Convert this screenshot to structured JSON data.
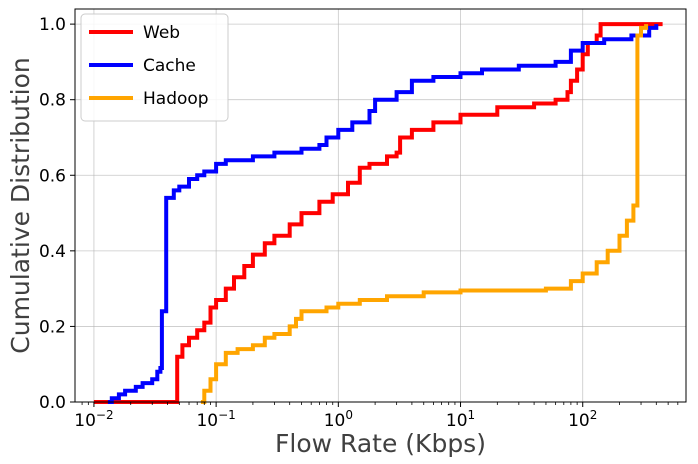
{
  "chart_data": {
    "type": "line",
    "step": true,
    "title": "",
    "xlabel": "Flow Rate (Kbps)",
    "ylabel": "Cumulative Distribution",
    "x_scale": "log",
    "xlim": [
      0.007,
      700
    ],
    "ylim": [
      0.0,
      1.04
    ],
    "x_ticks": [
      {
        "value": 0.01,
        "base": "10",
        "exp": "−2"
      },
      {
        "value": 0.1,
        "base": "10",
        "exp": "−1"
      },
      {
        "value": 1,
        "base": "10",
        "exp": "0"
      },
      {
        "value": 10,
        "base": "10",
        "exp": "1"
      },
      {
        "value": 100,
        "base": "10",
        "exp": "2"
      }
    ],
    "y_ticks": [
      {
        "value": 0.0,
        "label": "0.0"
      },
      {
        "value": 0.2,
        "label": "0.2"
      },
      {
        "value": 0.4,
        "label": "0.4"
      },
      {
        "value": 0.6,
        "label": "0.6"
      },
      {
        "value": 0.8,
        "label": "0.8"
      },
      {
        "value": 1.0,
        "label": "1.0"
      }
    ],
    "grid": true,
    "legend_position": "top-left",
    "series": [
      {
        "name": "Web",
        "color": "#ff0000",
        "points": [
          [
            0.01,
            0.0
          ],
          [
            0.048,
            0.0
          ],
          [
            0.048,
            0.12
          ],
          [
            0.053,
            0.15
          ],
          [
            0.06,
            0.17
          ],
          [
            0.07,
            0.19
          ],
          [
            0.08,
            0.21
          ],
          [
            0.09,
            0.25
          ],
          [
            0.1,
            0.27
          ],
          [
            0.12,
            0.3
          ],
          [
            0.14,
            0.33
          ],
          [
            0.17,
            0.36
          ],
          [
            0.2,
            0.39
          ],
          [
            0.25,
            0.42
          ],
          [
            0.3,
            0.44
          ],
          [
            0.4,
            0.47
          ],
          [
            0.5,
            0.5
          ],
          [
            0.7,
            0.53
          ],
          [
            0.9,
            0.55
          ],
          [
            1.2,
            0.58
          ],
          [
            1.5,
            0.62
          ],
          [
            1.8,
            0.63
          ],
          [
            2.5,
            0.65
          ],
          [
            3.0,
            0.66
          ],
          [
            3.2,
            0.7
          ],
          [
            4.0,
            0.72
          ],
          [
            6.0,
            0.74
          ],
          [
            10,
            0.76
          ],
          [
            20,
            0.78
          ],
          [
            40,
            0.79
          ],
          [
            60,
            0.8
          ],
          [
            70,
            0.8
          ],
          [
            75,
            0.82
          ],
          [
            80,
            0.85
          ],
          [
            90,
            0.88
          ],
          [
            100,
            0.92
          ],
          [
            110,
            0.95
          ],
          [
            130,
            0.97
          ],
          [
            140,
            1.0
          ],
          [
            450,
            1.0
          ]
        ]
      },
      {
        "name": "Cache",
        "color": "#0000ff",
        "points": [
          [
            0.013,
            0.0
          ],
          [
            0.014,
            0.01
          ],
          [
            0.016,
            0.02
          ],
          [
            0.018,
            0.03
          ],
          [
            0.022,
            0.04
          ],
          [
            0.025,
            0.05
          ],
          [
            0.03,
            0.06
          ],
          [
            0.033,
            0.08
          ],
          [
            0.035,
            0.09
          ],
          [
            0.036,
            0.24
          ],
          [
            0.038,
            0.24
          ],
          [
            0.039,
            0.54
          ],
          [
            0.045,
            0.56
          ],
          [
            0.05,
            0.57
          ],
          [
            0.06,
            0.59
          ],
          [
            0.07,
            0.6
          ],
          [
            0.08,
            0.61
          ],
          [
            0.1,
            0.63
          ],
          [
            0.12,
            0.64
          ],
          [
            0.2,
            0.65
          ],
          [
            0.3,
            0.66
          ],
          [
            0.5,
            0.67
          ],
          [
            0.7,
            0.68
          ],
          [
            0.8,
            0.7
          ],
          [
            1.0,
            0.72
          ],
          [
            1.3,
            0.74
          ],
          [
            1.8,
            0.77
          ],
          [
            2.0,
            0.8
          ],
          [
            3.0,
            0.82
          ],
          [
            4.0,
            0.85
          ],
          [
            6.0,
            0.86
          ],
          [
            8.0,
            0.86
          ],
          [
            10,
            0.87
          ],
          [
            15,
            0.88
          ],
          [
            30,
            0.89
          ],
          [
            60,
            0.9
          ],
          [
            70,
            0.9
          ],
          [
            80,
            0.93
          ],
          [
            100,
            0.95
          ],
          [
            150,
            0.96
          ],
          [
            250,
            0.97
          ],
          [
            350,
            0.99
          ],
          [
            400,
            1.0
          ]
        ]
      },
      {
        "name": "Hadoop",
        "color": "#ffa500",
        "points": [
          [
            0.075,
            0.0
          ],
          [
            0.08,
            0.03
          ],
          [
            0.09,
            0.06
          ],
          [
            0.1,
            0.1
          ],
          [
            0.12,
            0.13
          ],
          [
            0.15,
            0.14
          ],
          [
            0.2,
            0.15
          ],
          [
            0.25,
            0.17
          ],
          [
            0.3,
            0.18
          ],
          [
            0.4,
            0.2
          ],
          [
            0.45,
            0.22
          ],
          [
            0.5,
            0.24
          ],
          [
            0.8,
            0.25
          ],
          [
            1.0,
            0.26
          ],
          [
            1.5,
            0.27
          ],
          [
            2.5,
            0.28
          ],
          [
            5.0,
            0.29
          ],
          [
            10,
            0.295
          ],
          [
            50,
            0.3
          ],
          [
            60,
            0.3
          ],
          [
            80,
            0.32
          ],
          [
            100,
            0.34
          ],
          [
            130,
            0.37
          ],
          [
            160,
            0.4
          ],
          [
            200,
            0.44
          ],
          [
            230,
            0.48
          ],
          [
            260,
            0.52
          ],
          [
            280,
            0.54
          ],
          [
            280,
            0.97
          ],
          [
            300,
            0.99
          ],
          [
            330,
            1.0
          ]
        ]
      }
    ]
  }
}
